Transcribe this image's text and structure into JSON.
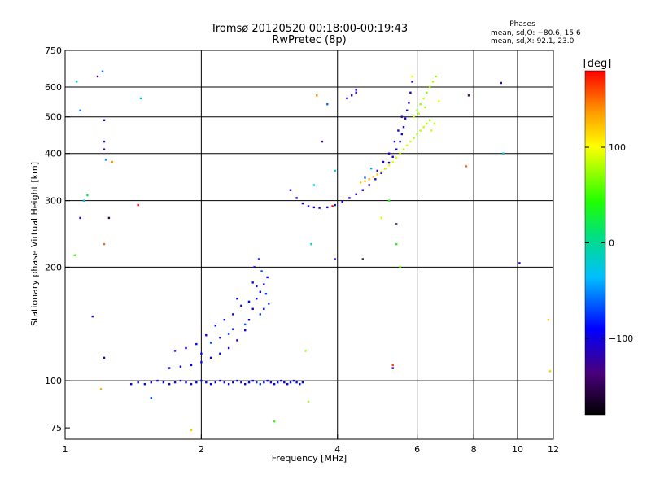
{
  "title_line1": "Tromsø 20120520 00:18:00-00:19:43",
  "title_line2": "RwPretec (8p)",
  "phases_title": "Phases",
  "phases_line1": "mean, sd,O: −80.6, 15.6",
  "phases_line2": "mean, sd,X:  92.1, 23.0",
  "colorbar": {
    "unit_label": "[deg]",
    "range": [
      -180,
      180
    ],
    "ticks": [
      {
        "value": 100,
        "label": "100"
      },
      {
        "value": 0,
        "label": "0"
      },
      {
        "value": -100,
        "label": "−100"
      }
    ]
  },
  "chart_data": {
    "type": "scatter",
    "xlabel": "Frequency [MHz]",
    "ylabel": "Stationary phase Virtual Height [km]",
    "x_scale": "log",
    "y_scale": "log",
    "xlim": [
      1,
      12
    ],
    "ylim": [
      70,
      750
    ],
    "grid": true,
    "x_ticks": [
      {
        "value": 1,
        "label": "1"
      },
      {
        "value": 2,
        "label": "2"
      },
      {
        "value": 4,
        "label": "4"
      },
      {
        "value": 6,
        "label": "6"
      },
      {
        "value": 8,
        "label": "8"
      },
      {
        "value": 10,
        "label": "10"
      },
      {
        "value": 12,
        "label": "12"
      }
    ],
    "x_gridlines": [
      2,
      4,
      6,
      8,
      10
    ],
    "y_ticks": [
      {
        "value": 75,
        "label": "75"
      },
      {
        "value": 100,
        "label": "100"
      },
      {
        "value": 200,
        "label": "200"
      },
      {
        "value": 300,
        "label": "300"
      },
      {
        "value": 400,
        "label": "400"
      },
      {
        "value": 500,
        "label": "500"
      },
      {
        "value": 600,
        "label": "600"
      },
      {
        "value": 750,
        "label": "750"
      }
    ],
    "y_gridlines": [
      100,
      200,
      300,
      400,
      500,
      600
    ],
    "series": [
      {
        "points": [
          [
            1.4,
            98,
            -95
          ],
          [
            1.45,
            99,
            -100
          ],
          [
            1.5,
            98,
            -90
          ],
          [
            1.55,
            99,
            -95
          ],
          [
            1.6,
            100,
            -100
          ],
          [
            1.65,
            99,
            -90
          ],
          [
            1.7,
            98,
            -95
          ],
          [
            1.75,
            99,
            -100
          ],
          [
            1.8,
            100,
            -90
          ],
          [
            1.85,
            99,
            -95
          ],
          [
            1.9,
            98,
            -100
          ],
          [
            1.95,
            99,
            -90
          ],
          [
            2.0,
            100,
            -95
          ],
          [
            2.05,
            99,
            -100
          ],
          [
            2.1,
            98,
            -90
          ],
          [
            2.15,
            99,
            -95
          ],
          [
            2.2,
            100,
            -100
          ],
          [
            2.25,
            99,
            -90
          ],
          [
            2.3,
            98,
            -95
          ],
          [
            2.35,
            99,
            -100
          ],
          [
            2.4,
            100,
            -90
          ],
          [
            2.45,
            99,
            -95
          ],
          [
            2.5,
            98,
            -100
          ],
          [
            2.55,
            99,
            -90
          ],
          [
            2.6,
            100,
            -95
          ],
          [
            2.65,
            99,
            -80
          ],
          [
            2.7,
            98,
            -70
          ],
          [
            2.75,
            99,
            -95
          ],
          [
            2.8,
            100,
            -90
          ],
          [
            2.85,
            99,
            -100
          ],
          [
            2.9,
            98,
            -95
          ],
          [
            2.95,
            99,
            -90
          ],
          [
            3.0,
            100,
            -95
          ],
          [
            3.05,
            99,
            -100
          ],
          [
            3.1,
            98,
            -90
          ],
          [
            3.15,
            99,
            -95
          ],
          [
            3.2,
            100,
            -100
          ],
          [
            3.25,
            99,
            -90
          ],
          [
            3.3,
            98,
            -95
          ],
          [
            3.35,
            99,
            -100
          ]
        ]
      },
      {
        "points": [
          [
            1.7,
            108,
            -95
          ],
          [
            1.8,
            109,
            -100
          ],
          [
            1.9,
            110,
            -90
          ],
          [
            2.0,
            112,
            -95
          ],
          [
            2.1,
            115,
            -100
          ],
          [
            2.2,
            118,
            -90
          ],
          [
            2.3,
            122,
            -95
          ],
          [
            2.4,
            128,
            -100
          ],
          [
            2.5,
            136,
            -90
          ],
          [
            2.55,
            145,
            -95
          ],
          [
            2.6,
            155,
            -100
          ],
          [
            2.65,
            165,
            -90
          ],
          [
            2.7,
            172,
            -95
          ],
          [
            2.75,
            180,
            -100
          ],
          [
            2.8,
            188,
            -90
          ],
          [
            2.62,
            200,
            -100
          ],
          [
            2.68,
            210,
            -95
          ],
          [
            2.72,
            195,
            -70
          ],
          [
            2.78,
            170,
            -70
          ],
          [
            2.82,
            160,
            -75
          ],
          [
            1.75,
            120,
            -100
          ],
          [
            1.85,
            122,
            -95
          ],
          [
            1.95,
            125,
            -90
          ],
          [
            2.05,
            132,
            -100
          ],
          [
            2.15,
            140,
            -95
          ],
          [
            2.25,
            145,
            -90
          ],
          [
            2.35,
            150,
            -100
          ],
          [
            2.45,
            158,
            -95
          ],
          [
            2.55,
            162,
            -90
          ],
          [
            2.65,
            178,
            -100
          ],
          [
            2.1,
            126,
            -70
          ],
          [
            2.3,
            133,
            -70
          ],
          [
            2.5,
            141,
            -65
          ],
          [
            2.7,
            150,
            -70
          ],
          [
            2.4,
            165,
            -95
          ],
          [
            2.2,
            130,
            -100
          ],
          [
            2.0,
            118,
            -95
          ],
          [
            2.35,
            137,
            -90
          ],
          [
            2.6,
            182,
            -100
          ],
          [
            2.75,
            155,
            -95
          ]
        ]
      },
      {
        "points": [
          [
            3.15,
            320,
            -105
          ],
          [
            3.25,
            305,
            -110
          ],
          [
            3.35,
            295,
            -110
          ],
          [
            3.45,
            290,
            -105
          ],
          [
            3.55,
            288,
            -110
          ],
          [
            3.65,
            287,
            -105
          ],
          [
            3.8,
            288,
            -110
          ],
          [
            3.95,
            292,
            -105
          ],
          [
            4.1,
            298,
            -110
          ],
          [
            4.25,
            305,
            -105
          ],
          [
            4.4,
            312,
            -110
          ],
          [
            4.55,
            320,
            -105
          ],
          [
            4.7,
            330,
            -100
          ],
          [
            4.85,
            342,
            -105
          ],
          [
            5.0,
            355,
            -100
          ],
          [
            5.1,
            365,
            -105
          ],
          [
            5.2,
            378,
            -100
          ],
          [
            5.3,
            392,
            -105
          ],
          [
            5.4,
            410,
            -100
          ],
          [
            5.5,
            430,
            -105
          ],
          [
            5.55,
            450,
            -100
          ],
          [
            5.6,
            470,
            -105
          ],
          [
            5.65,
            495,
            -100
          ],
          [
            5.7,
            520,
            -105
          ],
          [
            5.75,
            545,
            -100
          ],
          [
            5.8,
            580,
            -105
          ],
          [
            5.85,
            620,
            -100
          ],
          [
            4.9,
            360,
            -110
          ],
          [
            5.05,
            380,
            -110
          ],
          [
            5.2,
            400,
            -105
          ],
          [
            5.35,
            430,
            -110
          ],
          [
            5.45,
            460,
            -110
          ],
          [
            5.55,
            500,
            -105
          ],
          [
            4.6,
            345,
            -60
          ],
          [
            4.75,
            365,
            -40
          ],
          [
            4.2,
            560,
            -105
          ],
          [
            4.3,
            570,
            -110
          ],
          [
            3.95,
            360,
            -20
          ],
          [
            4.4,
            580,
            -100
          ]
        ]
      },
      {
        "points": [
          [
            4.5,
            335,
            120
          ],
          [
            4.6,
            338,
            125
          ],
          [
            4.7,
            342,
            130
          ],
          [
            4.8,
            347,
            125
          ],
          [
            4.9,
            352,
            120
          ],
          [
            5.0,
            358,
            110
          ],
          [
            5.1,
            365,
            105
          ],
          [
            5.2,
            372,
            100
          ],
          [
            5.3,
            380,
            95
          ],
          [
            5.4,
            390,
            90
          ],
          [
            5.5,
            400,
            85
          ],
          [
            5.6,
            410,
            80
          ],
          [
            5.7,
            420,
            90
          ],
          [
            5.8,
            430,
            85
          ],
          [
            5.9,
            440,
            80
          ],
          [
            6.0,
            450,
            75
          ],
          [
            6.1,
            460,
            80
          ],
          [
            6.2,
            470,
            85
          ],
          [
            6.3,
            480,
            80
          ],
          [
            6.4,
            490,
            75
          ],
          [
            6.0,
            520,
            70
          ],
          [
            6.1,
            540,
            75
          ],
          [
            6.2,
            560,
            80
          ],
          [
            6.3,
            580,
            70
          ],
          [
            6.4,
            600,
            75
          ],
          [
            6.5,
            620,
            80
          ],
          [
            6.6,
            640,
            70
          ],
          [
            5.9,
            500,
            85
          ],
          [
            6.05,
            510,
            80
          ],
          [
            6.25,
            530,
            75
          ],
          [
            6.55,
            480,
            85
          ],
          [
            6.45,
            460,
            90
          ],
          [
            5.85,
            640,
            95
          ],
          [
            6.7,
            550,
            90
          ]
        ]
      },
      {
        "points": [
          [
            1.06,
            620,
            -20
          ],
          [
            1.08,
            520,
            -60
          ],
          [
            1.1,
            300,
            -40
          ],
          [
            1.08,
            270,
            -110
          ],
          [
            1.12,
            310,
            20
          ],
          [
            1.18,
            640,
            -140
          ],
          [
            1.21,
            660,
            -60
          ],
          [
            1.22,
            490,
            -110
          ],
          [
            1.22,
            430,
            -120
          ],
          [
            1.22,
            410,
            -140
          ],
          [
            1.23,
            385,
            -50
          ],
          [
            1.27,
            380,
            140
          ],
          [
            1.25,
            270,
            -150
          ],
          [
            1.22,
            230,
            150
          ],
          [
            1.22,
            115,
            -100
          ],
          [
            1.05,
            215,
            50
          ],
          [
            1.15,
            148,
            -110
          ],
          [
            1.2,
            95,
            130
          ],
          [
            1.45,
            292,
            180
          ],
          [
            1.47,
            560,
            -40
          ],
          [
            1.55,
            90,
            -70
          ],
          [
            1.9,
            74,
            120
          ],
          [
            2.9,
            78,
            50
          ],
          [
            3.4,
            120,
            70
          ],
          [
            3.5,
            230,
            -10
          ],
          [
            3.55,
            330,
            -30
          ],
          [
            3.6,
            570,
            140
          ],
          [
            3.7,
            430,
            -130
          ],
          [
            3.8,
            540,
            -60
          ],
          [
            3.9,
            290,
            180
          ],
          [
            3.95,
            210,
            -100
          ],
          [
            4.4,
            590,
            -110
          ],
          [
            4.55,
            210,
            -170
          ],
          [
            5.0,
            270,
            90
          ],
          [
            5.2,
            300,
            40
          ],
          [
            5.3,
            110,
            160
          ],
          [
            5.3,
            108,
            -120
          ],
          [
            5.4,
            260,
            -160
          ],
          [
            5.4,
            230,
            40
          ],
          [
            5.5,
            200,
            60
          ],
          [
            7.8,
            570,
            -140
          ],
          [
            7.7,
            370,
            150
          ],
          [
            9.2,
            615,
            -110
          ],
          [
            9.3,
            400,
            -30
          ],
          [
            10.1,
            205,
            -110
          ],
          [
            11.7,
            145,
            120
          ],
          [
            11.8,
            106,
            120
          ],
          [
            3.45,
            88,
            80
          ]
        ]
      }
    ]
  }
}
